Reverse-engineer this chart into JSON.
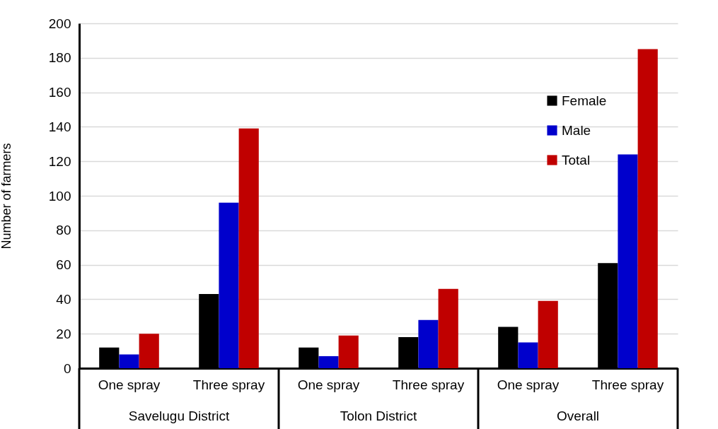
{
  "chart_data": {
    "type": "bar",
    "ylabel": "Number of farmers",
    "categories": [
      "One spray",
      "Three spray",
      "One spray",
      "Three spray",
      "One spray",
      "Three spray"
    ],
    "series": [
      {
        "name": "Female",
        "color": "#000000",
        "values": [
          12,
          43,
          12,
          18,
          24,
          61
        ]
      },
      {
        "name": "Male",
        "color": "#0000cc",
        "values": [
          8,
          96,
          7,
          28,
          15,
          124
        ]
      },
      {
        "name": "Total",
        "color": "#c00000",
        "values": [
          20,
          139,
          19,
          46,
          39,
          185
        ]
      }
    ],
    "annotations": [
      "Savelugu District",
      "Tolon District",
      "Overall"
    ],
    "ylim": [
      0,
      200
    ],
    "yticks": [
      0,
      20,
      40,
      60,
      80,
      100,
      120,
      140,
      160,
      180,
      200
    ],
    "grid": true,
    "legend": "top right"
  }
}
